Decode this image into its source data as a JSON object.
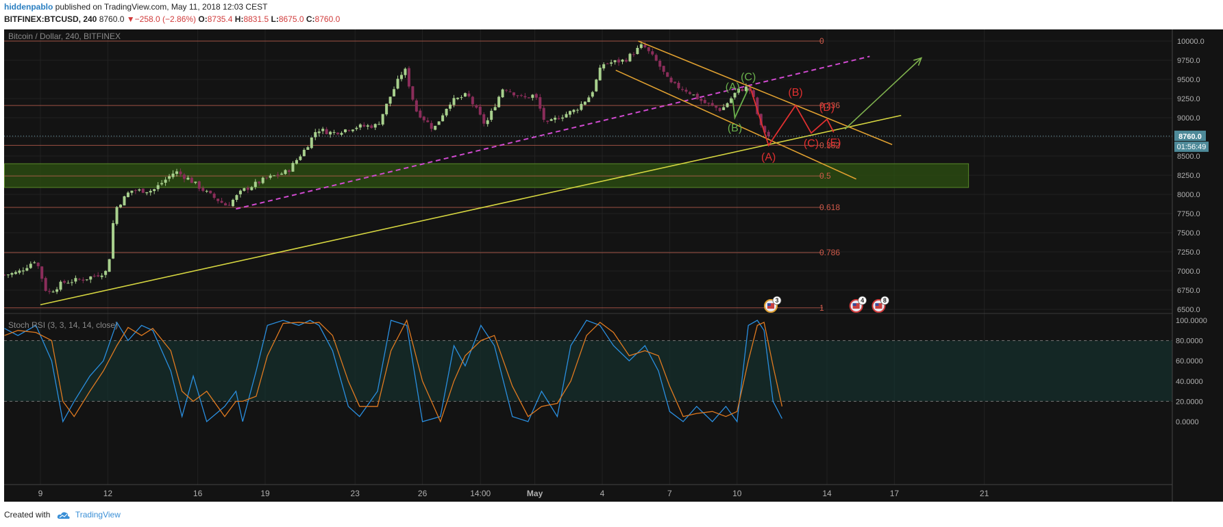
{
  "header": {
    "author": "hiddenpablo",
    "published_text": "published on TradingView.com, May 11, 2018 12:03 CEST"
  },
  "quote": {
    "symbol": "BITFINEX:BTCUSD, 240",
    "last": "8760.0",
    "change": "−258.0 (−2.86%)",
    "open_label": "O:",
    "open": "8735.4",
    "high_label": "H:",
    "high": "8831.5",
    "low_label": "L:",
    "low": "8675.0",
    "close_label": "C:",
    "close": "8760.0",
    "negative_color": "#d03a3a"
  },
  "footer": {
    "created_with": "Created with",
    "brand": "TradingView",
    "logo_icon": "tradingview-cloud-icon"
  },
  "chart_data": [
    {
      "type": "candlestick",
      "title": "Bitcoin / Dollar, 240, BITFINEX",
      "y_range": [
        6400,
        10100
      ],
      "y_ticks": [
        6500,
        6750,
        7000,
        7250,
        7500,
        7750,
        8000,
        8250,
        8500,
        8750,
        9000,
        9250,
        9500,
        9750,
        10000
      ],
      "y_tick_labels": [
        "6500.0",
        "6750.0",
        "7000.0",
        "7250.0",
        "7500.0",
        "7750.0",
        "8000.0",
        "8250.0",
        "8500.0",
        "8750.0",
        "9000.0",
        "9250.0",
        "9500.0",
        "9750.0",
        "10000.0"
      ],
      "x_ticks": [
        {
          "label": "9",
          "day": 9
        },
        {
          "label": "12",
          "day": 12
        },
        {
          "label": "16",
          "day": 16
        },
        {
          "label": "19",
          "day": 19
        },
        {
          "label": "23",
          "day": 23
        },
        {
          "label": "26",
          "day": 26
        },
        {
          "label": "14:00",
          "day": 28.58
        },
        {
          "label": "May",
          "day": 31
        },
        {
          "label": "4",
          "day": 34
        },
        {
          "label": "7",
          "day": 37
        },
        {
          "label": "10",
          "day": 40
        },
        {
          "label": "14",
          "day": 44
        },
        {
          "label": "17",
          "day": 47
        },
        {
          "label": "21",
          "day": 51
        }
      ],
      "x_axis_note": "days counted from April 1, 2018; May days = 30 + day",
      "price_label": {
        "value": 8760.0,
        "text": "8760.0"
      },
      "countdown": "01:56:49",
      "price_path": [
        {
          "day": 7.4,
          "price": 6950
        },
        {
          "day": 8.0,
          "price": 6980
        },
        {
          "day": 8.8,
          "price": 7150
        },
        {
          "day": 9.3,
          "price": 6700
        },
        {
          "day": 10.0,
          "price": 6850
        },
        {
          "day": 11.0,
          "price": 6900
        },
        {
          "day": 12.0,
          "price": 7000
        },
        {
          "day": 12.3,
          "price": 7800
        },
        {
          "day": 13.0,
          "price": 8050
        },
        {
          "day": 14.0,
          "price": 8050
        },
        {
          "day": 15.0,
          "price": 8300
        },
        {
          "day": 15.6,
          "price": 8200
        },
        {
          "day": 16.5,
          "price": 8000
        },
        {
          "day": 17.3,
          "price": 7850
        },
        {
          "day": 18.0,
          "price": 8050
        },
        {
          "day": 19.0,
          "price": 8200
        },
        {
          "day": 20.0,
          "price": 8300
        },
        {
          "day": 20.8,
          "price": 8600
        },
        {
          "day": 21.3,
          "price": 8850
        },
        {
          "day": 22.0,
          "price": 8800
        },
        {
          "day": 23.0,
          "price": 8880
        },
        {
          "day": 24.0,
          "price": 8900
        },
        {
          "day": 24.6,
          "price": 9300
        },
        {
          "day": 25.2,
          "price": 9650
        },
        {
          "day": 25.7,
          "price": 9100
        },
        {
          "day": 26.5,
          "price": 8850
        },
        {
          "day": 27.2,
          "price": 9200
        },
        {
          "day": 28.0,
          "price": 9300
        },
        {
          "day": 28.8,
          "price": 8900
        },
        {
          "day": 29.6,
          "price": 9400
        },
        {
          "day": 30.5,
          "price": 9250
        },
        {
          "day": 31.0,
          "price": 9300
        },
        {
          "day": 31.5,
          "price": 8900
        },
        {
          "day": 32.0,
          "price": 9000
        },
        {
          "day": 32.8,
          "price": 9100
        },
        {
          "day": 33.5,
          "price": 9300
        },
        {
          "day": 34.0,
          "price": 9700
        },
        {
          "day": 35.0,
          "price": 9750
        },
        {
          "day": 35.8,
          "price": 9950
        },
        {
          "day": 36.5,
          "price": 9700
        },
        {
          "day": 37.0,
          "price": 9450
        },
        {
          "day": 37.8,
          "price": 9350
        },
        {
          "day": 38.5,
          "price": 9200
        },
        {
          "day": 39.3,
          "price": 9100
        },
        {
          "day": 40.0,
          "price": 9350
        },
        {
          "day": 40.5,
          "price": 9400
        },
        {
          "day": 40.8,
          "price": 9200
        },
        {
          "day": 41.0,
          "price": 8900
        },
        {
          "day": 41.4,
          "price": 8760
        }
      ],
      "fib_levels": [
        {
          "ratio": "0",
          "price": 10000
        },
        {
          "ratio": "0.236",
          "price": 9160
        },
        {
          "ratio": "0.382",
          "price": 8640
        },
        {
          "ratio": "0.5",
          "price": 8240
        },
        {
          "ratio": "0.618",
          "price": 7830
        },
        {
          "ratio": "0.786",
          "price": 7240
        },
        {
          "ratio": "1",
          "price": 6520
        }
      ],
      "zone": {
        "price_from": 8090,
        "price_to": 8400,
        "day_from": 7.4,
        "day_to": 50.3,
        "color": "#2a4a12"
      },
      "trendlines": [
        {
          "name": "rising-support",
          "color": "#d6d640",
          "style": "solid",
          "from": {
            "day": 9.0,
            "price": 6560
          },
          "to": {
            "day": 47.3,
            "price": 9030
          }
        },
        {
          "name": "pink-channel",
          "color": "#d24bd2",
          "style": "dashed",
          "from": {
            "day": 17.7,
            "price": 7810
          },
          "to": {
            "day": 45.9,
            "price": 9800
          }
        },
        {
          "name": "upper-channel",
          "color": "#e0a030",
          "style": "solid",
          "from": {
            "day": 35.6,
            "price": 10000
          },
          "to": {
            "day": 46.9,
            "price": 8650
          }
        },
        {
          "name": "lower-channel",
          "color": "#e0a030",
          "style": "solid",
          "from": {
            "day": 34.6,
            "price": 9620
          },
          "to": {
            "day": 45.3,
            "price": 8200
          }
        }
      ],
      "wave_green": {
        "color": "#6ab04c",
        "points": [
          {
            "label": "(A)",
            "day": 39.8,
            "price": 9250,
            "label_dy": -24
          },
          {
            "label": "(B)",
            "day": 39.9,
            "price": 9000,
            "label_dy": 8
          },
          {
            "label": "(C)",
            "day": 40.5,
            "price": 9380,
            "label_dy": -24
          }
        ]
      },
      "wave_red": {
        "color": "#e03030",
        "points": [
          {
            "label": "",
            "day": 40.6,
            "price": 9380
          },
          {
            "label": "(A)",
            "day": 41.4,
            "price": 8640,
            "label_dy": 10
          },
          {
            "label": "(B)",
            "day": 42.6,
            "price": 9160,
            "label_dy": -26
          },
          {
            "label": "(C)",
            "day": 43.3,
            "price": 8800,
            "label_dy": 8
          },
          {
            "label": "(D)",
            "day": 44.0,
            "price": 8980,
            "label_dy": -24
          },
          {
            "label": "(E)",
            "day": 44.3,
            "price": 8810,
            "label_dy": 8
          }
        ]
      },
      "target_arrow": {
        "color": "#7fb24e",
        "from": {
          "day": 44.8,
          "price": 8850
        },
        "to": {
          "day": 48.2,
          "price": 9780
        }
      },
      "events": [
        {
          "day": 41.5,
          "count": "3",
          "color": "#e0a030"
        },
        {
          "day": 45.3,
          "count": "4",
          "color": "#d03a3a"
        },
        {
          "day": 46.3,
          "count": "8",
          "color": "#d03a3a"
        }
      ]
    },
    {
      "type": "line",
      "title": "Stoch RSI (3, 3, 14, 14, close)",
      "y_range": [
        -3,
        103
      ],
      "y_ticks": [
        0,
        20,
        40,
        60,
        80,
        100
      ],
      "y_tick_labels": [
        "0.0000",
        "20.0000",
        "40.0000",
        "60.0000",
        "80.0000",
        "100.0000"
      ],
      "band": {
        "from": 20,
        "to": 80
      },
      "series": [
        {
          "name": "%K",
          "color": "#2a8fe0",
          "points": [
            {
              "day": 7.4,
              "value": 92
            },
            {
              "day": 8.0,
              "value": 85
            },
            {
              "day": 8.8,
              "value": 95
            },
            {
              "day": 9.5,
              "value": 60
            },
            {
              "day": 10.0,
              "value": 0
            },
            {
              "day": 10.5,
              "value": 20
            },
            {
              "day": 11.2,
              "value": 45
            },
            {
              "day": 11.8,
              "value": 60
            },
            {
              "day": 12.4,
              "value": 98
            },
            {
              "day": 12.9,
              "value": 80
            },
            {
              "day": 13.5,
              "value": 95
            },
            {
              "day": 14.0,
              "value": 90
            },
            {
              "day": 14.8,
              "value": 50
            },
            {
              "day": 15.3,
              "value": 5
            },
            {
              "day": 15.8,
              "value": 45
            },
            {
              "day": 16.4,
              "value": 0
            },
            {
              "day": 17.2,
              "value": 15
            },
            {
              "day": 17.7,
              "value": 30
            },
            {
              "day": 18.0,
              "value": 0
            },
            {
              "day": 18.6,
              "value": 50
            },
            {
              "day": 19.1,
              "value": 95
            },
            {
              "day": 19.8,
              "value": 100
            },
            {
              "day": 20.5,
              "value": 95
            },
            {
              "day": 21.0,
              "value": 100
            },
            {
              "day": 21.4,
              "value": 95
            },
            {
              "day": 22.0,
              "value": 70
            },
            {
              "day": 22.7,
              "value": 15
            },
            {
              "day": 23.2,
              "value": 5
            },
            {
              "day": 24.0,
              "value": 30
            },
            {
              "day": 24.6,
              "value": 100
            },
            {
              "day": 25.3,
              "value": 95
            },
            {
              "day": 26.0,
              "value": 0
            },
            {
              "day": 26.8,
              "value": 5
            },
            {
              "day": 27.4,
              "value": 75
            },
            {
              "day": 27.9,
              "value": 55
            },
            {
              "day": 28.6,
              "value": 95
            },
            {
              "day": 29.2,
              "value": 75
            },
            {
              "day": 30.0,
              "value": 5
            },
            {
              "day": 30.7,
              "value": 0
            },
            {
              "day": 31.3,
              "value": 30
            },
            {
              "day": 32.0,
              "value": 5
            },
            {
              "day": 32.6,
              "value": 75
            },
            {
              "day": 33.3,
              "value": 100
            },
            {
              "day": 33.9,
              "value": 95
            },
            {
              "day": 34.5,
              "value": 75
            },
            {
              "day": 35.2,
              "value": 60
            },
            {
              "day": 35.9,
              "value": 75
            },
            {
              "day": 36.5,
              "value": 50
            },
            {
              "day": 37.0,
              "value": 10
            },
            {
              "day": 37.6,
              "value": 0
            },
            {
              "day": 38.2,
              "value": 15
            },
            {
              "day": 38.9,
              "value": 0
            },
            {
              "day": 39.5,
              "value": 15
            },
            {
              "day": 40.0,
              "value": 0
            },
            {
              "day": 40.5,
              "value": 95
            },
            {
              "day": 40.9,
              "value": 100
            },
            {
              "day": 41.2,
              "value": 90
            },
            {
              "day": 41.6,
              "value": 20
            },
            {
              "day": 42.0,
              "value": 3
            }
          ]
        },
        {
          "name": "%D",
          "color": "#e07a20",
          "points": [
            {
              "day": 7.4,
              "value": 85
            },
            {
              "day": 8.0,
              "value": 90
            },
            {
              "day": 8.8,
              "value": 88
            },
            {
              "day": 9.5,
              "value": 80
            },
            {
              "day": 10.0,
              "value": 20
            },
            {
              "day": 10.5,
              "value": 5
            },
            {
              "day": 11.2,
              "value": 30
            },
            {
              "day": 11.8,
              "value": 50
            },
            {
              "day": 12.4,
              "value": 75
            },
            {
              "day": 12.9,
              "value": 93
            },
            {
              "day": 13.5,
              "value": 85
            },
            {
              "day": 14.0,
              "value": 92
            },
            {
              "day": 14.8,
              "value": 70
            },
            {
              "day": 15.3,
              "value": 30
            },
            {
              "day": 15.8,
              "value": 20
            },
            {
              "day": 16.4,
              "value": 30
            },
            {
              "day": 17.2,
              "value": 5
            },
            {
              "day": 17.7,
              "value": 20
            },
            {
              "day": 18.0,
              "value": 20
            },
            {
              "day": 18.6,
              "value": 25
            },
            {
              "day": 19.1,
              "value": 65
            },
            {
              "day": 19.8,
              "value": 97
            },
            {
              "day": 20.5,
              "value": 98
            },
            {
              "day": 21.0,
              "value": 97
            },
            {
              "day": 21.4,
              "value": 98
            },
            {
              "day": 22.0,
              "value": 85
            },
            {
              "day": 22.7,
              "value": 40
            },
            {
              "day": 23.2,
              "value": 15
            },
            {
              "day": 24.0,
              "value": 15
            },
            {
              "day": 24.6,
              "value": 70
            },
            {
              "day": 25.3,
              "value": 100
            },
            {
              "day": 26.0,
              "value": 40
            },
            {
              "day": 26.8,
              "value": 0
            },
            {
              "day": 27.4,
              "value": 40
            },
            {
              "day": 27.9,
              "value": 65
            },
            {
              "day": 28.6,
              "value": 80
            },
            {
              "day": 29.2,
              "value": 85
            },
            {
              "day": 30.0,
              "value": 35
            },
            {
              "day": 30.7,
              "value": 5
            },
            {
              "day": 31.3,
              "value": 15
            },
            {
              "day": 32.0,
              "value": 18
            },
            {
              "day": 32.6,
              "value": 40
            },
            {
              "day": 33.3,
              "value": 85
            },
            {
              "day": 33.9,
              "value": 98
            },
            {
              "day": 34.5,
              "value": 88
            },
            {
              "day": 35.2,
              "value": 65
            },
            {
              "day": 35.9,
              "value": 70
            },
            {
              "day": 36.5,
              "value": 65
            },
            {
              "day": 37.0,
              "value": 35
            },
            {
              "day": 37.6,
              "value": 5
            },
            {
              "day": 38.2,
              "value": 8
            },
            {
              "day": 38.9,
              "value": 10
            },
            {
              "day": 39.5,
              "value": 5
            },
            {
              "day": 40.0,
              "value": 10
            },
            {
              "day": 40.5,
              "value": 60
            },
            {
              "day": 40.9,
              "value": 95
            },
            {
              "day": 41.2,
              "value": 98
            },
            {
              "day": 41.6,
              "value": 55
            },
            {
              "day": 42.0,
              "value": 15
            }
          ]
        }
      ]
    }
  ]
}
